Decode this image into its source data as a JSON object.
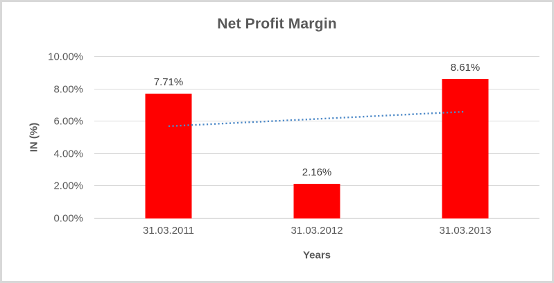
{
  "chart_data": {
    "type": "bar",
    "title": "Net Profit Margin",
    "xlabel": "Years",
    "ylabel": "IN (%)",
    "categories": [
      "31.03.2011",
      "31.03.2012",
      "31.03.2013"
    ],
    "values": [
      7.71,
      2.16,
      8.61
    ],
    "data_labels": [
      "7.71%",
      "2.16%",
      "8.61%"
    ],
    "ylim": [
      0,
      10
    ],
    "ytick_step": 2,
    "ytick_labels": [
      "0.00%",
      "2.00%",
      "4.00%",
      "6.00%",
      "8.00%",
      "10.00%"
    ],
    "grid": true,
    "legend": "none",
    "colors": {
      "bar": "#FF0000",
      "trendline": "#4E8AC8",
      "gridline": "#D9D9D9",
      "axis_line": "#BFBFBF",
      "text": "#595959",
      "data_label_text": "#404040",
      "frame_border": "#D8D8D8"
    },
    "trendline": {
      "type": "linear",
      "style": "dotted",
      "start_value": 5.71,
      "end_value": 6.61
    }
  }
}
